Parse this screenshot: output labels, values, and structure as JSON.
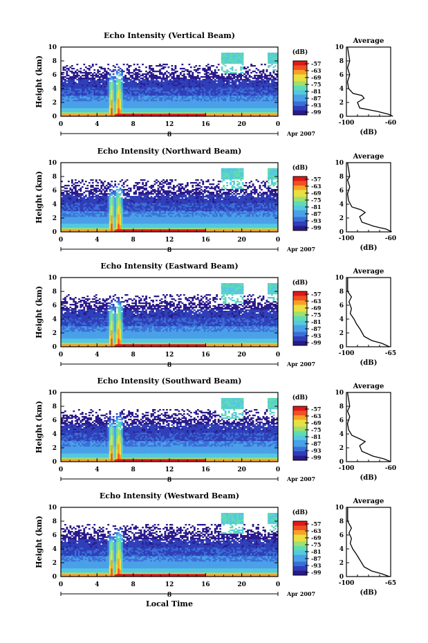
{
  "chart_data": [
    {
      "type": "heatmap",
      "title": "Echo Intensity (Vertical Beam)",
      "ylabel": "Height (km)",
      "ylim": [
        0,
        10
      ],
      "yticks": [
        "0",
        "2",
        "4",
        "6",
        "8",
        "10"
      ],
      "xticks": [
        "0",
        "4",
        "8",
        "12",
        "16",
        "20",
        "0"
      ],
      "date_marker": "8",
      "date_label": "Apr 2007",
      "colorbar_title": "(dB)",
      "colorbar_levels": [
        "-57",
        "-63",
        "-69",
        "-75",
        "-81",
        "-87",
        "-93",
        "-99"
      ],
      "average": {
        "title": "Average",
        "xlabel": "(dB)",
        "xticks": [
          "-100",
          "-60"
        ],
        "xlim": [
          -100,
          -60
        ],
        "profile": [
          [
            -58,
            0
          ],
          [
            -62,
            0.3
          ],
          [
            -72,
            0.7
          ],
          [
            -88,
            1.2
          ],
          [
            -90,
            2.0
          ],
          [
            -84,
            2.6
          ],
          [
            -86,
            3.0
          ],
          [
            -94,
            3.3
          ],
          [
            -98,
            4.0
          ],
          [
            -99,
            5.0
          ],
          [
            -97,
            6.0
          ],
          [
            -99,
            7.0
          ],
          [
            -97,
            8.0
          ],
          [
            -99,
            10
          ]
        ]
      }
    },
    {
      "type": "heatmap",
      "title": "Echo Intensity (Northward Beam)",
      "ylabel": "Height (km)",
      "ylim": [
        0,
        10
      ],
      "yticks": [
        "0",
        "2",
        "4",
        "6",
        "8",
        "10"
      ],
      "xticks": [
        "0",
        "4",
        "8",
        "12",
        "16",
        "20",
        "0"
      ],
      "date_marker": "8",
      "date_label": "Apr 2007",
      "colorbar_title": "(dB)",
      "colorbar_levels": [
        "-57",
        "-63",
        "-69",
        "-75",
        "-81",
        "-87",
        "-93",
        "-99"
      ],
      "average": {
        "title": "Average",
        "xlabel": "(dB)",
        "xticks": [
          "-100",
          "-60"
        ],
        "xlim": [
          -100,
          -60
        ],
        "profile": [
          [
            -59,
            0
          ],
          [
            -64,
            0.4
          ],
          [
            -75,
            0.8
          ],
          [
            -86,
            1.4
          ],
          [
            -88,
            2.2
          ],
          [
            -83,
            2.8
          ],
          [
            -87,
            3.2
          ],
          [
            -95,
            3.6
          ],
          [
            -98,
            4.5
          ],
          [
            -99,
            5.5
          ],
          [
            -97,
            6.5
          ],
          [
            -99,
            7.5
          ],
          [
            -97,
            8.0
          ],
          [
            -99,
            10
          ]
        ]
      }
    },
    {
      "type": "heatmap",
      "title": "Echo Intensity (Eastward Beam)",
      "ylabel": "Height (km)",
      "ylim": [
        0,
        10
      ],
      "yticks": [
        "0",
        "2",
        "4",
        "6",
        "8",
        "10"
      ],
      "xticks": [
        "0",
        "4",
        "8",
        "12",
        "16",
        "20",
        "0"
      ],
      "date_marker": "8",
      "date_label": "Apr 2007",
      "colorbar_title": "(dB)",
      "colorbar_levels": [
        "-57",
        "-63",
        "-69",
        "-75",
        "-81",
        "-87",
        "-93",
        "-99"
      ],
      "average": {
        "title": "Average",
        "xlabel": "(dB)",
        "xticks": [
          "-100",
          "-65"
        ],
        "xlim": [
          -100,
          -65
        ],
        "profile": [
          [
            -66,
            0
          ],
          [
            -72,
            0.5
          ],
          [
            -80,
            0.9
          ],
          [
            -86,
            1.5
          ],
          [
            -89,
            2.5
          ],
          [
            -92,
            3.3
          ],
          [
            -94,
            4.0
          ],
          [
            -97,
            4.8
          ],
          [
            -96,
            5.5
          ],
          [
            -98,
            6.5
          ],
          [
            -96,
            7.2
          ],
          [
            -99,
            8.0
          ],
          [
            -99,
            10
          ]
        ]
      }
    },
    {
      "type": "heatmap",
      "title": "Echo Intensity (Southward Beam)",
      "ylabel": "Height (km)",
      "ylim": [
        0,
        10
      ],
      "yticks": [
        "0",
        "2",
        "4",
        "6",
        "8",
        "10"
      ],
      "xticks": [
        "0",
        "4",
        "8",
        "12",
        "16",
        "20",
        "0"
      ],
      "date_marker": "8",
      "date_label": "Apr 2007",
      "colorbar_title": "(dB)",
      "colorbar_levels": [
        "-57",
        "-63",
        "-69",
        "-75",
        "-81",
        "-87",
        "-93",
        "-99"
      ],
      "average": {
        "title": "Average",
        "xlabel": "(dB)",
        "xticks": [
          "-100",
          "-60"
        ],
        "xlim": [
          -100,
          -60
        ],
        "profile": [
          [
            -60,
            0
          ],
          [
            -66,
            0.4
          ],
          [
            -76,
            0.8
          ],
          [
            -86,
            1.5
          ],
          [
            -88,
            2.3
          ],
          [
            -83,
            2.9
          ],
          [
            -88,
            3.3
          ],
          [
            -95,
            3.8
          ],
          [
            -98,
            4.6
          ],
          [
            -99,
            5.5
          ],
          [
            -97,
            6.5
          ],
          [
            -99,
            7.3
          ],
          [
            -97,
            8.0
          ],
          [
            -99,
            10
          ]
        ]
      }
    },
    {
      "type": "heatmap",
      "title": "Echo Intensity (Westward Beam)",
      "ylabel": "Height (km)",
      "ylim": [
        0,
        10
      ],
      "yticks": [
        "0",
        "2",
        "4",
        "6",
        "8",
        "10"
      ],
      "xticks": [
        "0",
        "4",
        "8",
        "12",
        "16",
        "20",
        "0"
      ],
      "date_marker": "8",
      "date_label": "Apr 2007",
      "colorbar_title": "(dB)",
      "colorbar_levels": [
        "-57",
        "-63",
        "-69",
        "-75",
        "-81",
        "-87",
        "-93",
        "-99"
      ],
      "xlabel": "Local Time",
      "average": {
        "title": "Average",
        "xlabel": "(dB)",
        "xticks": [
          "-100",
          "-65"
        ],
        "xlim": [
          -100,
          -65
        ],
        "profile": [
          [
            -66,
            0
          ],
          [
            -72,
            0.4
          ],
          [
            -80,
            0.8
          ],
          [
            -86,
            1.4
          ],
          [
            -89,
            2.3
          ],
          [
            -92,
            3.2
          ],
          [
            -95,
            4.0
          ],
          [
            -97,
            4.8
          ],
          [
            -96,
            5.5
          ],
          [
            -98,
            6.3
          ],
          [
            -96,
            7.0
          ],
          [
            -99,
            8.0
          ],
          [
            -99,
            10
          ]
        ]
      }
    }
  ],
  "colors": {
    "scale": [
      "#2a1a8c",
      "#2f3fb8",
      "#3b6fd8",
      "#4aa0e8",
      "#55c8e0",
      "#60dcb0",
      "#a0e070",
      "#e8e040",
      "#f8a028",
      "#f05020",
      "#e01818"
    ]
  }
}
